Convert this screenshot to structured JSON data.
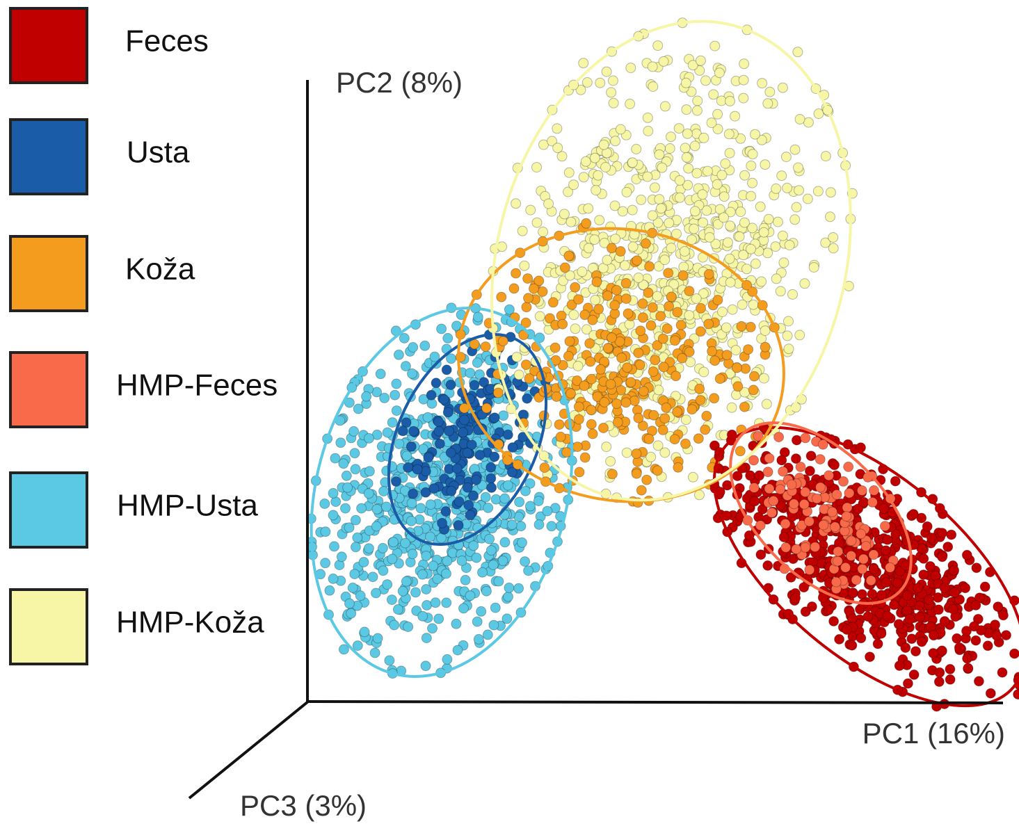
{
  "chart_data": {
    "type": "scatter3d",
    "x_label": "PC1 (16%)",
    "y_label": "PC2 (8%)",
    "z_label": "PC3 (3%)",
    "series": [
      {
        "name": "Feces",
        "color": "#c00000"
      },
      {
        "name": "Usta",
        "color": "#1a5ca8"
      },
      {
        "name": "Koža",
        "color": "#f39c1e"
      },
      {
        "name": "HMP-Feces",
        "color": "#f96a4a"
      },
      {
        "name": "HMP-Usta",
        "color": "#5bc8e4"
      },
      {
        "name": "HMP-Koža",
        "color": "#f6f6a6"
      }
    ]
  }
}
